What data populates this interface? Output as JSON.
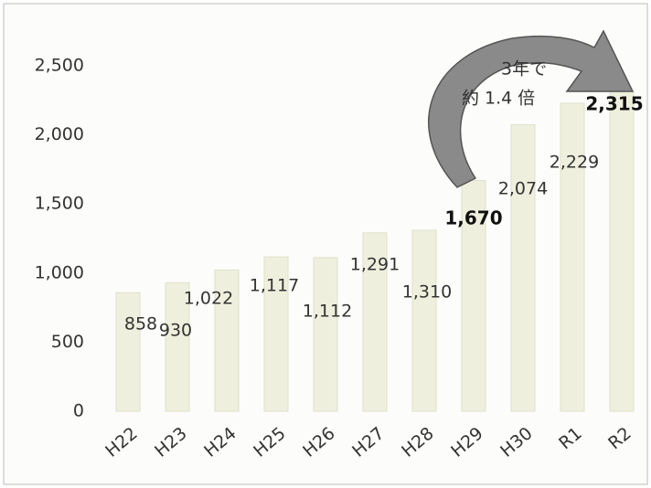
{
  "chart_data": {
    "type": "bar",
    "categories": [
      "H22",
      "H23",
      "H24",
      "H25",
      "H26",
      "H27",
      "H28",
      "H29",
      "H30",
      "R1",
      "R2"
    ],
    "values": [
      858,
      930,
      1022,
      1117,
      1112,
      1291,
      1310,
      1670,
      2074,
      2229,
      2315
    ],
    "value_labels": [
      "858",
      "930",
      "1,022",
      "1,117",
      "1,112",
      "1,291",
      "1,310",
      "1,670",
      "2,074",
      "2,229",
      "2,315"
    ],
    "color": "#eef0dd",
    "ylim": [
      0,
      2800
    ],
    "yticks": [
      0,
      500,
      {
        "value": 1000,
        "label": "1,000"
      },
      {
        "value": 1500,
        "label": "1,500"
      },
      {
        "value": 2000,
        "label": "2,000"
      },
      {
        "value": 2500,
        "label": "2,500"
      }
    ],
    "annotation": [
      "3年で",
      "約 1.4 倍"
    ]
  }
}
